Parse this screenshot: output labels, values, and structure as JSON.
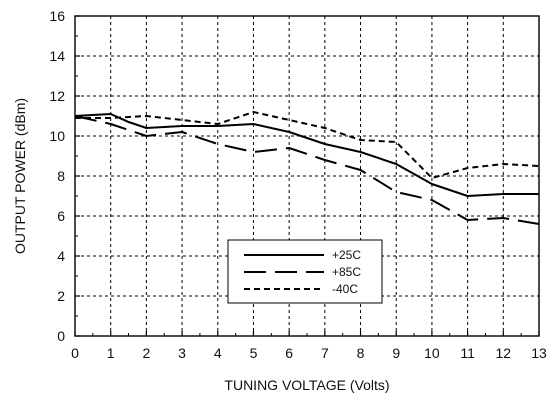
{
  "chart_data": {
    "type": "line",
    "title": "",
    "xlabel": "TUNING VOLTAGE (Volts)",
    "ylabel": "OUTPUT POWER (dBm)",
    "xlim": [
      0,
      13
    ],
    "ylim": [
      0,
      16
    ],
    "x_ticks": [
      "0",
      "1",
      "2",
      "3",
      "4",
      "5",
      "6",
      "7",
      "8",
      "9",
      "10",
      "11",
      "12",
      "13"
    ],
    "y_ticks": [
      "0",
      "2",
      "4",
      "6",
      "8",
      "10",
      "12",
      "14",
      "16"
    ],
    "grid": true,
    "grid_style": "dashed",
    "legend_position": "lower-center",
    "series": [
      {
        "name": "+25C",
        "line_style": "solid",
        "x": [
          0,
          1,
          1.5,
          2,
          3,
          4,
          5,
          6,
          7,
          8,
          9,
          10,
          11,
          12,
          13
        ],
        "y": [
          11.0,
          11.1,
          10.7,
          10.4,
          10.5,
          10.5,
          10.6,
          10.2,
          9.6,
          9.2,
          8.6,
          7.6,
          7.0,
          7.1,
          7.1
        ]
      },
      {
        "name": "+85C",
        "line_style": "long-dash",
        "x": [
          0,
          1,
          2,
          3,
          4,
          5,
          6,
          7,
          8,
          9,
          10,
          11,
          12,
          13
        ],
        "y": [
          11.0,
          10.6,
          10.0,
          10.2,
          9.6,
          9.2,
          9.4,
          8.8,
          8.3,
          7.2,
          6.8,
          5.8,
          5.9,
          5.6
        ]
      },
      {
        "name": "-40C",
        "line_style": "short-dash",
        "x": [
          0,
          1,
          2,
          3,
          4,
          5,
          6,
          7,
          8,
          9,
          10,
          11,
          12,
          13
        ],
        "y": [
          10.9,
          10.9,
          11.0,
          10.8,
          10.6,
          11.2,
          10.8,
          10.4,
          9.8,
          9.7,
          7.9,
          8.4,
          8.6,
          8.5
        ]
      }
    ]
  }
}
